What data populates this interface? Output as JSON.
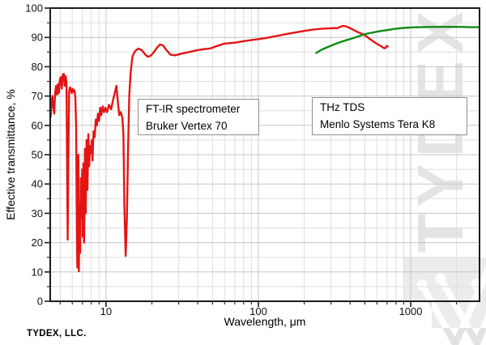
{
  "watermark": {
    "text": "TYDEX",
    "company": "TYDEX, LLC."
  },
  "annotations": [
    {
      "lines": [
        "FT-IR spectrometer",
        "Bruker Vertex 70"
      ]
    },
    {
      "lines": [
        "THz TDS",
        "Menlo Systems Tera K8"
      ]
    }
  ],
  "colors": {
    "axis": "#1c1c1c",
    "grid_minor": "#dedede",
    "grid_major": "#c6c6c6",
    "watermark_gray": "#e2e2e2",
    "watermark_block": "#ececec",
    "series_red": "#e51414",
    "series_green": "#128a12"
  },
  "chart_data": {
    "type": "line",
    "title": "",
    "xlabel": "Wavelength, μm",
    "ylabel": "Effective transmittance, %",
    "x_scale": "log",
    "xlim": [
      4.3,
      2830
    ],
    "ylim": [
      0,
      100
    ],
    "x_ticks_major": [
      10,
      100,
      1000
    ],
    "y_tick_major": 10,
    "y_tick_minor": 5,
    "grid": {
      "major": true,
      "minor": true
    },
    "legend_position": "inline annotation boxes",
    "series": [
      {
        "name": "FT-IR spectrometer Bruker Vertex 70",
        "color": "#e51414",
        "points": [
          [
            4.3,
            67.5
          ],
          [
            4.33,
            63
          ],
          [
            4.4,
            68
          ],
          [
            4.45,
            70
          ],
          [
            4.5,
            66.5
          ],
          [
            4.57,
            64
          ],
          [
            4.63,
            71
          ],
          [
            4.7,
            73.5
          ],
          [
            4.77,
            70.5
          ],
          [
            4.83,
            74
          ],
          [
            4.9,
            71
          ],
          [
            4.97,
            75.5
          ],
          [
            5.05,
            76.5
          ],
          [
            5.12,
            72.5
          ],
          [
            5.2,
            77.3
          ],
          [
            5.28,
            77.6
          ],
          [
            5.35,
            73.5
          ],
          [
            5.43,
            76.8
          ],
          [
            5.5,
            74.5
          ],
          [
            5.55,
            45
          ],
          [
            5.6,
            21
          ],
          [
            5.66,
            50
          ],
          [
            5.72,
            71.5
          ],
          [
            5.8,
            73
          ],
          [
            5.88,
            72
          ],
          [
            5.96,
            71
          ],
          [
            6.04,
            72.5
          ],
          [
            6.12,
            71.5
          ],
          [
            6.2,
            72
          ],
          [
            6.28,
            70
          ],
          [
            6.36,
            60
          ],
          [
            6.43,
            25
          ],
          [
            6.48,
            11.5
          ],
          [
            6.53,
            45
          ],
          [
            6.58,
            50
          ],
          [
            6.63,
            10.2
          ],
          [
            6.7,
            33
          ],
          [
            6.76,
            16.5
          ],
          [
            6.83,
            42
          ],
          [
            6.9,
            28.5
          ],
          [
            6.97,
            45
          ],
          [
            7.03,
            22
          ],
          [
            7.1,
            47
          ],
          [
            7.18,
            20
          ],
          [
            7.27,
            52
          ],
          [
            7.36,
            30
          ],
          [
            7.45,
            55
          ],
          [
            7.55,
            38
          ],
          [
            7.65,
            57
          ],
          [
            7.75,
            46
          ],
          [
            7.85,
            53
          ],
          [
            7.95,
            50.5
          ],
          [
            8.05,
            55
          ],
          [
            8.15,
            48
          ],
          [
            8.28,
            58
          ],
          [
            8.42,
            56
          ],
          [
            8.56,
            62
          ],
          [
            8.7,
            60
          ],
          [
            8.85,
            64
          ],
          [
            9.0,
            61.5
          ],
          [
            9.15,
            66
          ],
          [
            9.3,
            63.5
          ],
          [
            9.5,
            66.5
          ],
          [
            9.7,
            64.5
          ],
          [
            9.9,
            66
          ],
          [
            10.15,
            64.5
          ],
          [
            10.45,
            67
          ],
          [
            10.8,
            65.5
          ],
          [
            11.1,
            68.5
          ],
          [
            11.4,
            71
          ],
          [
            11.7,
            73.5
          ],
          [
            11.95,
            68
          ],
          [
            12.2,
            63.5
          ],
          [
            12.5,
            64.5
          ],
          [
            12.8,
            62.5
          ],
          [
            13.0,
            57
          ],
          [
            13.2,
            32
          ],
          [
            13.45,
            15.5
          ],
          [
            13.7,
            28
          ],
          [
            13.95,
            52
          ],
          [
            14.2,
            70
          ],
          [
            14.5,
            78
          ],
          [
            14.9,
            83.5
          ],
          [
            15.5,
            85.3
          ],
          [
            16.3,
            86.2
          ],
          [
            17.2,
            85.6
          ],
          [
            18.0,
            84.3
          ],
          [
            18.8,
            83.4
          ],
          [
            19.6,
            83.7
          ],
          [
            20.6,
            85.0
          ],
          [
            21.6,
            86.5
          ],
          [
            22.6,
            87.6
          ],
          [
            23.6,
            87.3
          ],
          [
            25,
            85.6
          ],
          [
            26.5,
            84.1
          ],
          [
            28.5,
            83.9
          ],
          [
            31,
            84.4
          ],
          [
            35,
            85.0
          ],
          [
            40,
            85.7
          ],
          [
            44,
            86.0
          ],
          [
            48,
            86.2
          ],
          [
            53,
            87.0
          ],
          [
            60,
            87.9
          ],
          [
            70,
            88.2
          ],
          [
            82,
            88.8
          ],
          [
            100,
            89.4
          ],
          [
            115,
            89.9
          ],
          [
            135,
            90.6
          ],
          [
            155,
            91.2
          ],
          [
            180,
            91.8
          ],
          [
            210,
            92.4
          ],
          [
            240,
            92.8
          ],
          [
            270,
            93.0
          ],
          [
            295,
            93.1
          ],
          [
            315,
            93.2
          ],
          [
            330,
            93.15
          ],
          [
            342,
            93.5
          ],
          [
            355,
            93.9
          ],
          [
            375,
            93.8
          ],
          [
            395,
            93.3
          ],
          [
            420,
            92.6
          ],
          [
            450,
            91.8
          ],
          [
            480,
            91.2
          ],
          [
            510,
            90.4
          ],
          [
            545,
            89.3
          ],
          [
            580,
            88.3
          ],
          [
            615,
            87.5
          ],
          [
            645,
            86.9
          ],
          [
            665,
            86.4
          ],
          [
            680,
            86.3
          ],
          [
            695,
            87.1
          ],
          [
            707,
            86.9
          ]
        ]
      },
      {
        "name": "THz TDS Menlo Systems Tera K8",
        "color": "#128a12",
        "points": [
          [
            240,
            84.7
          ],
          [
            260,
            85.8
          ],
          [
            285,
            86.7
          ],
          [
            310,
            87.5
          ],
          [
            340,
            88.3
          ],
          [
            375,
            89.0
          ],
          [
            410,
            89.6
          ],
          [
            450,
            90.3
          ],
          [
            490,
            91.0
          ],
          [
            530,
            91.4
          ],
          [
            580,
            91.8
          ],
          [
            640,
            92.2
          ],
          [
            700,
            92.5
          ],
          [
            780,
            92.9
          ],
          [
            880,
            93.2
          ],
          [
            1000,
            93.4
          ],
          [
            1150,
            93.5
          ],
          [
            1400,
            93.6
          ],
          [
            1700,
            93.6
          ],
          [
            2100,
            93.6
          ],
          [
            2500,
            93.5
          ],
          [
            2830,
            93.5
          ]
        ]
      }
    ]
  }
}
